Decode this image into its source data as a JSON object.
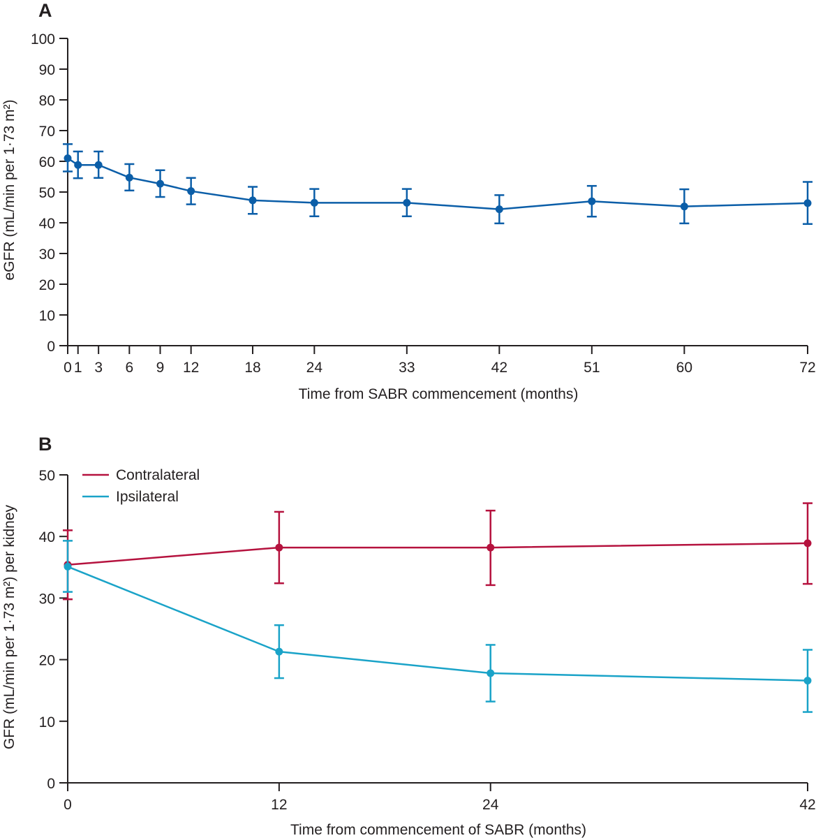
{
  "colors": {
    "axis": "#231f20",
    "panelA_series": "#0b5ea8",
    "contralateral": "#b5123e",
    "ipsilateral": "#1aa3c8"
  },
  "chart_data": [
    {
      "panel_label": "A",
      "type": "line",
      "title": "",
      "xlabel": "Time from SABR commencement (months)",
      "ylabel": "eGFR (mL/min per 1·73 m²)",
      "ylim": [
        0,
        100
      ],
      "xlim": [
        0,
        72
      ],
      "yticks": [
        0,
        10,
        20,
        30,
        40,
        50,
        60,
        70,
        80,
        90,
        100
      ],
      "xticks": [
        0,
        1,
        3,
        6,
        9,
        12,
        18,
        24,
        33,
        42,
        51,
        60,
        72
      ],
      "series": [
        {
          "name": "eGFR",
          "x": [
            0,
            1,
            3,
            6,
            9,
            12,
            18,
            24,
            33,
            42,
            51,
            60,
            72
          ],
          "values": [
            61,
            58.8,
            58.8,
            54.7,
            52.7,
            50.3,
            47.3,
            46.5,
            46.5,
            44.4,
            47,
            45.3,
            46.4
          ],
          "error_low": [
            56.7,
            54.5,
            54.6,
            50.5,
            48.4,
            46,
            42.9,
            42.1,
            42.1,
            39.8,
            42,
            39.8,
            39.6
          ],
          "error_high": [
            65.6,
            63.2,
            63.2,
            59.1,
            57.1,
            54.6,
            51.7,
            51,
            51,
            49,
            52,
            50.9,
            53.3
          ]
        }
      ]
    },
    {
      "panel_label": "B",
      "type": "line",
      "title": "",
      "xlabel": "Time from commencement of SABR (months)",
      "ylabel": "GFR (mL/min per 1·73 m²) per kidney",
      "ylim": [
        0,
        50
      ],
      "yticks": [
        0,
        10,
        20,
        30,
        40,
        50
      ],
      "categories": [
        "0",
        "12",
        "24",
        "42"
      ],
      "legend": {
        "position": "top-left",
        "entries": [
          "Contralateral",
          "Ipsilateral"
        ]
      },
      "series": [
        {
          "name": "Contralateral",
          "values": [
            35.4,
            38.2,
            38.2,
            38.9
          ],
          "error_low": [
            29.8,
            32.4,
            32.1,
            32.3
          ],
          "error_high": [
            41,
            44,
            44.2,
            45.4
          ]
        },
        {
          "name": "Ipsilateral",
          "values": [
            35.1,
            21.3,
            17.8,
            16.6
          ],
          "error_low": [
            31,
            17,
            13.2,
            11.5
          ],
          "error_high": [
            39.3,
            25.6,
            22.4,
            21.6
          ]
        }
      ]
    }
  ]
}
